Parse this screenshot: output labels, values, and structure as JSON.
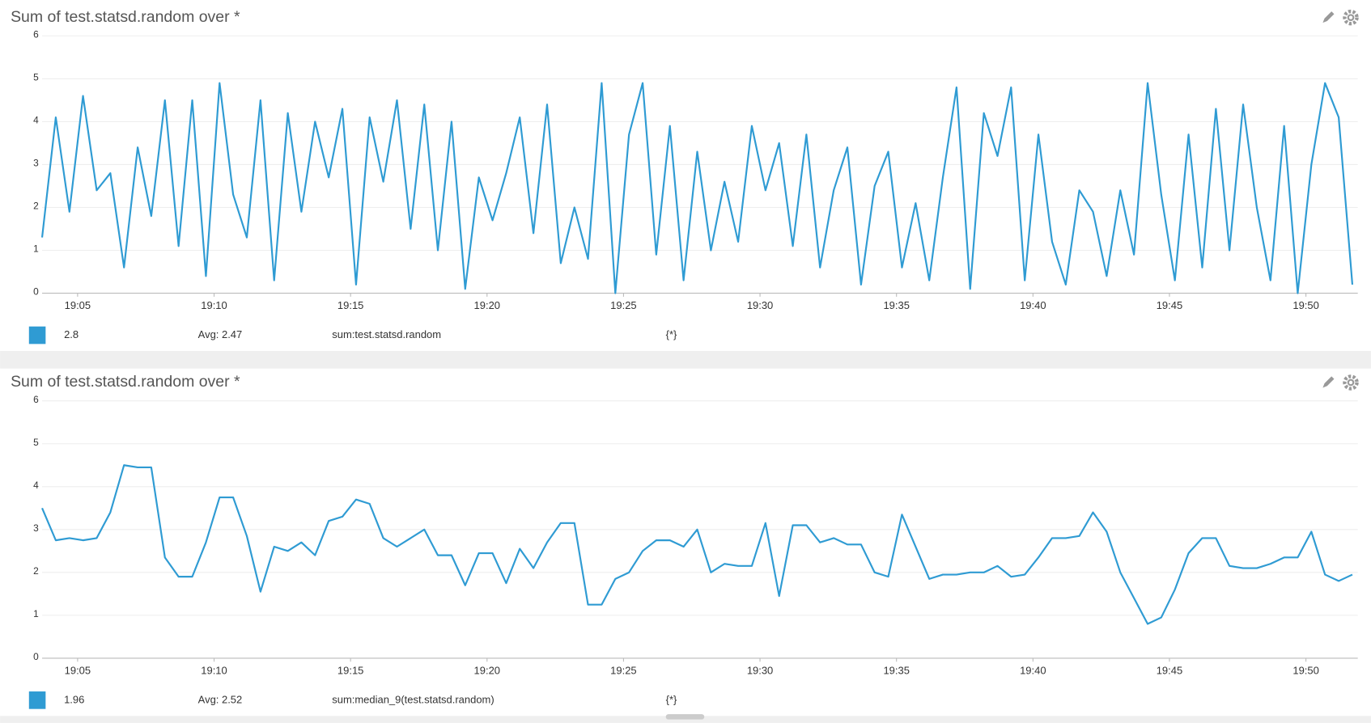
{
  "chart_data": [
    {
      "type": "line",
      "title": "Sum of test.statsd.random over *",
      "color": "#2f9bd3",
      "x": [
        3.7,
        4.2,
        4.7,
        5.2,
        5.7,
        6.2,
        6.7,
        7.2,
        7.7,
        8.2,
        8.7,
        9.2,
        9.7,
        10.2,
        10.7,
        11.2,
        11.7,
        12.2,
        12.7,
        13.2,
        13.7,
        14.2,
        14.7,
        15.2,
        15.7,
        16.2,
        16.7,
        17.2,
        17.7,
        18.2,
        18.7,
        19.2,
        19.7,
        20.2,
        20.7,
        21.2,
        21.7,
        22.2,
        22.7,
        23.2,
        23.7,
        24.2,
        24.7,
        25.2,
        25.7,
        26.2,
        26.7,
        27.2,
        27.7,
        28.2,
        28.7,
        29.2,
        29.7,
        30.2,
        30.7,
        31.2,
        31.7,
        32.2,
        32.7,
        33.2,
        33.7,
        34.2,
        34.7,
        35.2,
        35.7,
        36.2,
        36.7,
        37.2,
        37.7,
        38.2,
        38.7,
        39.2,
        39.7,
        40.2,
        40.7,
        41.2,
        41.7,
        42.2,
        42.7,
        43.2,
        43.7,
        44.2,
        44.7,
        45.2,
        45.7,
        46.2,
        46.7,
        47.2,
        47.7,
        48.2,
        48.7,
        49.2,
        49.7,
        50.2,
        50.7,
        51.2,
        51.7
      ],
      "values": [
        1.3,
        4.1,
        1.9,
        4.6,
        2.4,
        2.8,
        0.6,
        3.4,
        1.8,
        4.5,
        1.1,
        4.5,
        0.4,
        4.9,
        2.3,
        1.3,
        4.5,
        0.3,
        4.2,
        1.9,
        4.0,
        2.7,
        4.3,
        0.2,
        4.1,
        2.6,
        4.5,
        1.5,
        4.4,
        1.0,
        4.0,
        0.1,
        2.7,
        1.7,
        2.8,
        4.1,
        1.4,
        4.4,
        0.7,
        2.0,
        0.8,
        4.9,
        0.0,
        3.7,
        4.9,
        0.9,
        3.9,
        0.3,
        3.3,
        1.0,
        2.6,
        1.2,
        3.9,
        2.4,
        3.5,
        1.1,
        3.7,
        0.6,
        2.4,
        3.4,
        0.2,
        2.5,
        3.3,
        0.6,
        2.1,
        0.3,
        2.7,
        4.8,
        0.1,
        4.2,
        3.2,
        4.8,
        0.3,
        3.7,
        1.2,
        0.2,
        2.4,
        1.9,
        0.4,
        2.4,
        0.9,
        4.9,
        2.3,
        0.3,
        3.7,
        0.6,
        4.3,
        1.0,
        4.4,
        2.0,
        0.3,
        3.9,
        0.0,
        3.0,
        4.9,
        4.1,
        0.2
      ],
      "xlim": [
        3.7,
        51.9
      ],
      "ylim": [
        0,
        6
      ],
      "yticks": [
        0,
        1,
        2,
        3,
        4,
        5,
        6
      ],
      "xticks": [
        {
          "value": 5,
          "label": "19:05"
        },
        {
          "value": 10,
          "label": "19:10"
        },
        {
          "value": 15,
          "label": "19:15"
        },
        {
          "value": 20,
          "label": "19:20"
        },
        {
          "value": 25,
          "label": "19:25"
        },
        {
          "value": 30,
          "label": "19:30"
        },
        {
          "value": 35,
          "label": "19:35"
        },
        {
          "value": 40,
          "label": "19:40"
        },
        {
          "value": 45,
          "label": "19:45"
        },
        {
          "value": 50,
          "label": "19:50"
        }
      ],
      "grid": true,
      "legend": {
        "value": "2.8",
        "avg": "Avg: 2.47",
        "query": "sum:test.statsd.random",
        "scope": "{*}"
      }
    },
    {
      "type": "line",
      "title": "Sum of test.statsd.random over *",
      "color": "#2f9bd3",
      "x": [
        3.7,
        4.2,
        4.7,
        5.2,
        5.7,
        6.2,
        6.7,
        7.2,
        7.7,
        8.2,
        8.7,
        9.2,
        9.7,
        10.2,
        10.7,
        11.2,
        11.7,
        12.2,
        12.7,
        13.2,
        13.7,
        14.2,
        14.7,
        15.2,
        15.7,
        16.2,
        16.7,
        17.2,
        17.7,
        18.2,
        18.7,
        19.2,
        19.7,
        20.2,
        20.7,
        21.2,
        21.7,
        22.2,
        22.7,
        23.2,
        23.7,
        24.2,
        24.7,
        25.2,
        25.7,
        26.2,
        26.7,
        27.2,
        27.7,
        28.2,
        28.7,
        29.2,
        29.7,
        30.2,
        30.7,
        31.2,
        31.7,
        32.2,
        32.7,
        33.2,
        33.7,
        34.2,
        34.7,
        35.2,
        35.7,
        36.2,
        36.7,
        37.2,
        37.7,
        38.2,
        38.7,
        39.2,
        39.7,
        40.2,
        40.7,
        41.2,
        41.7,
        42.2,
        42.7,
        43.2,
        43.7,
        44.2,
        44.7,
        45.2,
        45.7,
        46.2,
        46.7,
        47.2,
        47.7,
        48.2,
        48.7,
        49.2,
        49.7,
        50.2,
        50.7,
        51.2,
        51.7
      ],
      "values": [
        3.5,
        2.75,
        2.8,
        2.75,
        2.8,
        3.4,
        4.5,
        4.45,
        4.45,
        2.35,
        1.9,
        1.9,
        2.7,
        3.75,
        3.75,
        2.85,
        1.55,
        2.6,
        2.5,
        2.7,
        2.4,
        3.2,
        3.3,
        3.7,
        3.6,
        2.8,
        2.6,
        2.8,
        3.0,
        2.4,
        2.4,
        1.7,
        2.45,
        2.45,
        1.75,
        2.55,
        2.1,
        2.7,
        3.15,
        3.15,
        1.25,
        1.25,
        1.85,
        2.0,
        2.5,
        2.75,
        2.75,
        2.6,
        3.0,
        2.0,
        2.2,
        2.15,
        2.15,
        3.15,
        1.45,
        3.1,
        3.1,
        2.7,
        2.8,
        2.65,
        2.65,
        2.0,
        1.9,
        3.35,
        2.6,
        1.85,
        1.95,
        1.95,
        2.0,
        2.0,
        2.15,
        1.9,
        1.95,
        2.35,
        2.8,
        2.8,
        2.85,
        3.4,
        2.95,
        2.0,
        1.4,
        0.8,
        0.95,
        1.6,
        2.45,
        2.8,
        2.8,
        2.15,
        2.1,
        2.1,
        2.2,
        2.35,
        2.35,
        2.95,
        1.95,
        1.8,
        1.95
      ],
      "xlim": [
        3.7,
        51.9
      ],
      "ylim": [
        0,
        6
      ],
      "yticks": [
        0,
        1,
        2,
        3,
        4,
        5,
        6
      ],
      "xticks": [
        {
          "value": 5,
          "label": "19:05"
        },
        {
          "value": 10,
          "label": "19:10"
        },
        {
          "value": 15,
          "label": "19:15"
        },
        {
          "value": 20,
          "label": "19:20"
        },
        {
          "value": 25,
          "label": "19:25"
        },
        {
          "value": 30,
          "label": "19:30"
        },
        {
          "value": 35,
          "label": "19:35"
        },
        {
          "value": 40,
          "label": "19:40"
        },
        {
          "value": 45,
          "label": "19:45"
        },
        {
          "value": 50,
          "label": "19:50"
        }
      ],
      "grid": true,
      "legend": {
        "value": "1.96",
        "avg": "Avg: 2.52",
        "query": "sum:median_9(test.statsd.random)",
        "scope": "{*}"
      }
    }
  ]
}
